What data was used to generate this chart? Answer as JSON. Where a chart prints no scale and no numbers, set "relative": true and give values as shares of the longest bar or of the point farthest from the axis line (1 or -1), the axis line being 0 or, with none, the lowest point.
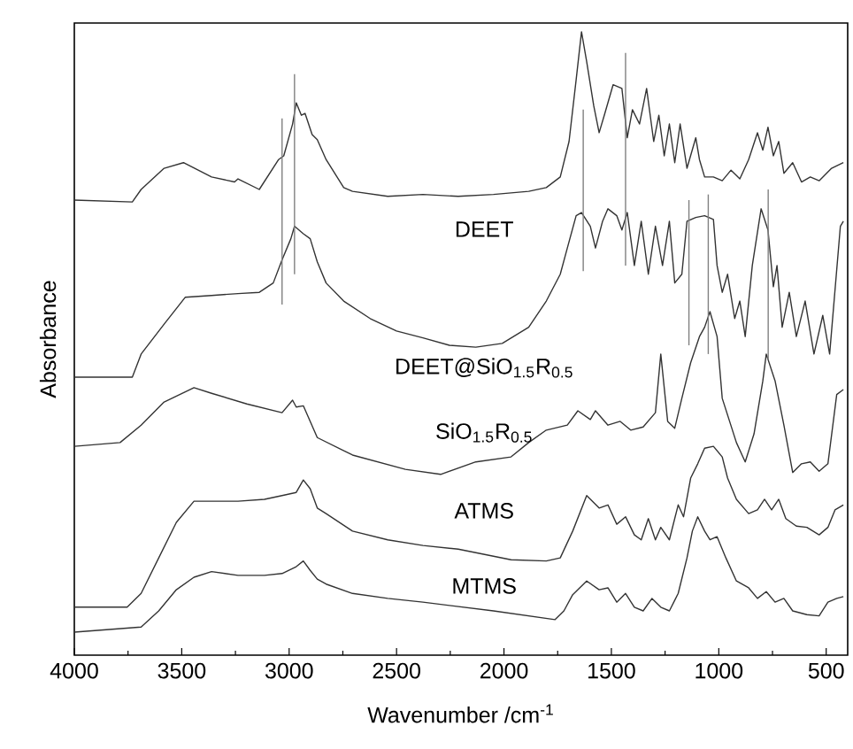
{
  "chart_data": {
    "type": "line",
    "relative": true,
    "xlabel": "Wavenumber /cm$^{-1}$",
    "ylabel": "Absorbance",
    "xlim": [
      4000,
      400
    ],
    "xticks": [
      4000,
      3500,
      3000,
      2500,
      2000,
      1500,
      1000,
      500
    ],
    "series": [
      {
        "name": "DEET",
        "color": "#333333",
        "x": [
          4000,
          3730,
          3689,
          3582,
          3492,
          3361,
          3254,
          3238,
          3139,
          3049,
          3025,
          2984,
          2967,
          2943,
          2926,
          2893,
          2869,
          2828,
          2746,
          2705,
          2541,
          2377,
          2213,
          2049,
          1885,
          1803,
          1738,
          1697,
          1664,
          1639,
          1615,
          1582,
          1557,
          1533,
          1492,
          1451,
          1426,
          1402,
          1369,
          1336,
          1303,
          1279,
          1254,
          1230,
          1205,
          1180,
          1148,
          1107,
          1090,
          1066,
          1025,
          984,
          943,
          902,
          861,
          820,
          795,
          771,
          746,
          721,
          697,
          656,
          615,
          574,
          533,
          475,
          420
        ],
        "values": [
          0.73,
          0.727,
          0.747,
          0.781,
          0.79,
          0.767,
          0.759,
          0.764,
          0.747,
          0.795,
          0.801,
          0.852,
          0.886,
          0.866,
          0.869,
          0.835,
          0.827,
          0.795,
          0.75,
          0.744,
          0.736,
          0.739,
          0.736,
          0.739,
          0.744,
          0.75,
          0.767,
          0.824,
          0.923,
          1.0,
          0.952,
          0.881,
          0.838,
          0.866,
          0.915,
          0.909,
          0.83,
          0.875,
          0.852,
          0.909,
          0.824,
          0.866,
          0.801,
          0.852,
          0.79,
          0.852,
          0.781,
          0.83,
          0.795,
          0.767,
          0.767,
          0.761,
          0.778,
          0.764,
          0.795,
          0.838,
          0.81,
          0.847,
          0.801,
          0.824,
          0.773,
          0.79,
          0.759,
          0.767,
          0.761,
          0.781,
          0.79
        ]
      },
      {
        "name": "DEET@SiO$_{1.5}$R$_{0.5}$",
        "color": "#333333",
        "x": [
          4000,
          3730,
          3689,
          3582,
          3484,
          3361,
          3238,
          3139,
          3074,
          3033,
          2992,
          2975,
          2934,
          2902,
          2869,
          2828,
          2746,
          2623,
          2500,
          2377,
          2254,
          2131,
          2008,
          1885,
          1803,
          1738,
          1705,
          1664,
          1639,
          1598,
          1574,
          1541,
          1516,
          1475,
          1451,
          1426,
          1393,
          1361,
          1328,
          1295,
          1262,
          1230,
          1205,
          1172,
          1148,
          1107,
          1066,
          1025,
          1008,
          984,
          959,
          926,
          902,
          877,
          844,
          803,
          771,
          746,
          729,
          705,
          672,
          639,
          598,
          557,
          516,
          484,
          434,
          420
        ],
        "values": [
          0.446,
          0.446,
          0.483,
          0.531,
          0.574,
          0.577,
          0.58,
          0.582,
          0.597,
          0.634,
          0.668,
          0.688,
          0.676,
          0.668,
          0.631,
          0.597,
          0.568,
          0.54,
          0.52,
          0.509,
          0.497,
          0.494,
          0.5,
          0.526,
          0.568,
          0.611,
          0.653,
          0.705,
          0.71,
          0.688,
          0.653,
          0.696,
          0.716,
          0.705,
          0.682,
          0.71,
          0.625,
          0.696,
          0.611,
          0.688,
          0.625,
          0.696,
          0.597,
          0.611,
          0.696,
          0.702,
          0.705,
          0.699,
          0.625,
          0.582,
          0.611,
          0.54,
          0.568,
          0.511,
          0.625,
          0.716,
          0.682,
          0.591,
          0.625,
          0.526,
          0.582,
          0.511,
          0.568,
          0.483,
          0.545,
          0.483,
          0.688,
          0.696
        ]
      },
      {
        "name": "SiO$_{1.5}$R$_{0.5}$",
        "color": "#333333",
        "x": [
          4000,
          3787,
          3689,
          3582,
          3443,
          3361,
          3197,
          3033,
          2984,
          2967,
          2934,
          2869,
          2705,
          2459,
          2295,
          2131,
          1967,
          1885,
          1803,
          1705,
          1656,
          1598,
          1574,
          1516,
          1459,
          1410,
          1352,
          1295,
          1270,
          1238,
          1205,
          1172,
          1131,
          1090,
          1066,
          1041,
          1008,
          984,
          918,
          877,
          836,
          795,
          779,
          738,
          697,
          656,
          615,
          574,
          533,
          492,
          451,
          420
        ],
        "values": [
          0.335,
          0.341,
          0.369,
          0.406,
          0.429,
          0.42,
          0.403,
          0.389,
          0.409,
          0.398,
          0.4,
          0.349,
          0.321,
          0.298,
          0.29,
          0.31,
          0.318,
          0.341,
          0.361,
          0.369,
          0.392,
          0.378,
          0.392,
          0.369,
          0.375,
          0.361,
          0.366,
          0.389,
          0.483,
          0.375,
          0.364,
          0.412,
          0.469,
          0.511,
          0.526,
          0.551,
          0.511,
          0.412,
          0.341,
          0.31,
          0.355,
          0.44,
          0.483,
          0.44,
          0.369,
          0.293,
          0.307,
          0.31,
          0.295,
          0.307,
          0.418,
          0.426
        ]
      },
      {
        "name": "ATMS",
        "color": "#333333",
        "x": [
          4000,
          3754,
          3689,
          3607,
          3525,
          3443,
          3361,
          3238,
          3115,
          3033,
          2967,
          2934,
          2902,
          2869,
          2828,
          2705,
          2541,
          2377,
          2213,
          1967,
          1803,
          1738,
          1680,
          1615,
          1557,
          1516,
          1475,
          1434,
          1393,
          1361,
          1328,
          1295,
          1270,
          1230,
          1189,
          1164,
          1131,
          1098,
          1066,
          1025,
          984,
          959,
          918,
          861,
          820,
          787,
          754,
          721,
          688,
          639,
          590,
          533,
          492,
          459,
          420
        ],
        "values": [
          0.077,
          0.077,
          0.099,
          0.156,
          0.213,
          0.247,
          0.247,
          0.247,
          0.25,
          0.256,
          0.261,
          0.281,
          0.267,
          0.236,
          0.227,
          0.199,
          0.185,
          0.176,
          0.17,
          0.153,
          0.151,
          0.156,
          0.199,
          0.256,
          0.236,
          0.241,
          0.21,
          0.222,
          0.193,
          0.185,
          0.219,
          0.185,
          0.205,
          0.185,
          0.241,
          0.222,
          0.284,
          0.307,
          0.332,
          0.335,
          0.318,
          0.284,
          0.25,
          0.227,
          0.233,
          0.25,
          0.233,
          0.25,
          0.219,
          0.207,
          0.205,
          0.193,
          0.205,
          0.233,
          0.241
        ]
      },
      {
        "name": "MTMS",
        "color": "#333333",
        "x": [
          4000,
          3689,
          3607,
          3525,
          3443,
          3361,
          3238,
          3115,
          3033,
          2967,
          2934,
          2902,
          2869,
          2828,
          2705,
          2541,
          2377,
          2049,
          1762,
          1721,
          1680,
          1615,
          1557,
          1516,
          1475,
          1434,
          1393,
          1352,
          1311,
          1270,
          1230,
          1189,
          1148,
          1123,
          1098,
          1066,
          1041,
          1008,
          967,
          918,
          861,
          820,
          779,
          738,
          697,
          656,
          590,
          533,
          492,
          451,
          420
        ],
        "values": [
          0.037,
          0.045,
          0.071,
          0.105,
          0.125,
          0.134,
          0.128,
          0.128,
          0.131,
          0.142,
          0.151,
          0.136,
          0.122,
          0.114,
          0.099,
          0.091,
          0.085,
          0.071,
          0.057,
          0.071,
          0.097,
          0.119,
          0.105,
          0.108,
          0.085,
          0.099,
          0.077,
          0.071,
          0.091,
          0.077,
          0.071,
          0.099,
          0.156,
          0.199,
          0.222,
          0.199,
          0.185,
          0.19,
          0.156,
          0.119,
          0.108,
          0.091,
          0.102,
          0.085,
          0.091,
          0.071,
          0.065,
          0.063,
          0.085,
          0.091,
          0.094
        ]
      },
      {
        "color": "#808080",
        "x": [
          3033,
          3033
        ],
        "values": [
          0.5625,
          0.861
        ]
      },
      {
        "color": "#808080",
        "x": [
          2975,
          2975
        ],
        "values": [
          0.611,
          0.932
        ]
      },
      {
        "color": "#808080",
        "x": [
          1631,
          1631
        ],
        "values": [
          0.616,
          0.875
        ]
      },
      {
        "color": "#808080",
        "x": [
          1434,
          1434
        ],
        "values": [
          0.625,
          0.966
        ]
      },
      {
        "color": "#808080",
        "x": [
          1139,
          1139
        ],
        "values": [
          0.497,
          0.73
        ]
      },
      {
        "color": "#808080",
        "x": [
          1049,
          1049
        ],
        "values": [
          0.483,
          0.739
        ]
      },
      {
        "color": "#808080",
        "x": [
          770,
          770
        ],
        "values": [
          0.474,
          0.747
        ]
      }
    ]
  }
}
